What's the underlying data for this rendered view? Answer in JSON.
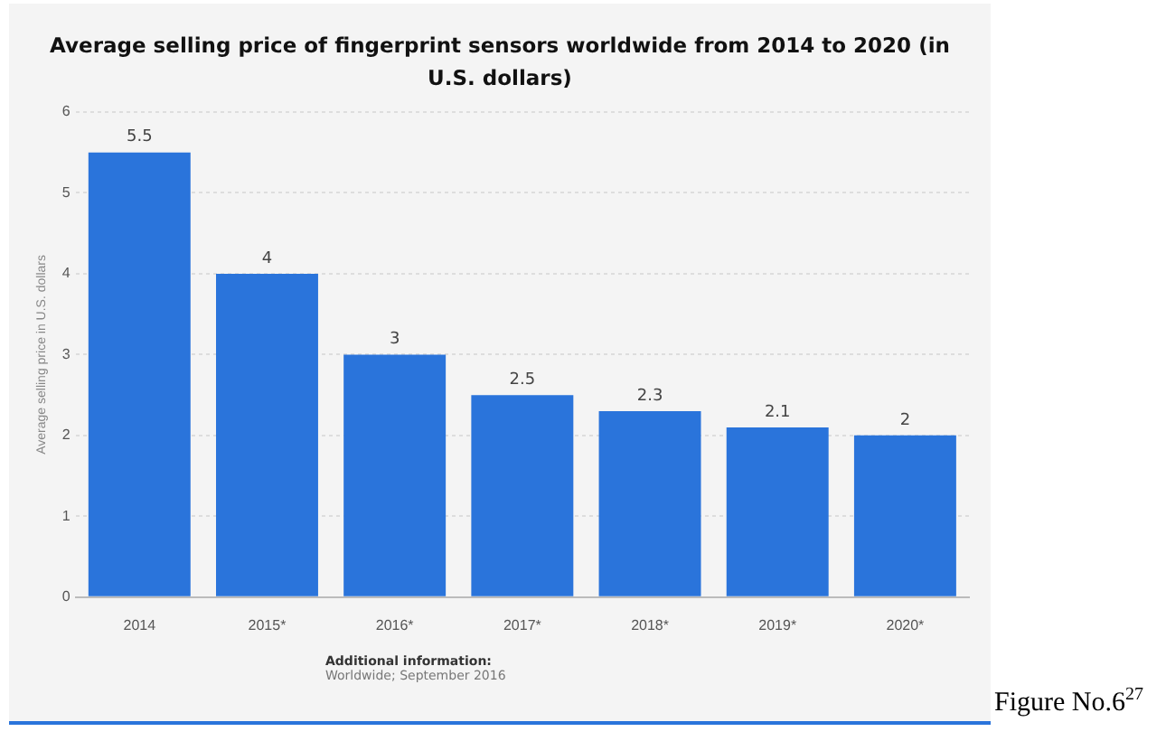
{
  "chart_data": {
    "type": "bar",
    "title": "Average selling price of fingerprint sensors worldwide from 2014 to 2020 (in U.S. dollars)",
    "ylabel": "Average selling price in U.S. dollars",
    "categories": [
      "2014",
      "2015*",
      "2016*",
      "2017*",
      "2018*",
      "2019*",
      "2020*"
    ],
    "values": [
      5.5,
      4,
      3,
      2.5,
      2.3,
      2.1,
      2
    ],
    "color": "#2a74db",
    "ylim": [
      0,
      6
    ],
    "yticks": [
      0,
      1,
      2,
      3,
      4,
      5,
      6
    ],
    "grid": "y",
    "data_labels": true,
    "legend": false,
    "annotations": [
      "Additional information:",
      "Worldwide; September 2016",
      "Figure No.6$^{27}$"
    ]
  }
}
